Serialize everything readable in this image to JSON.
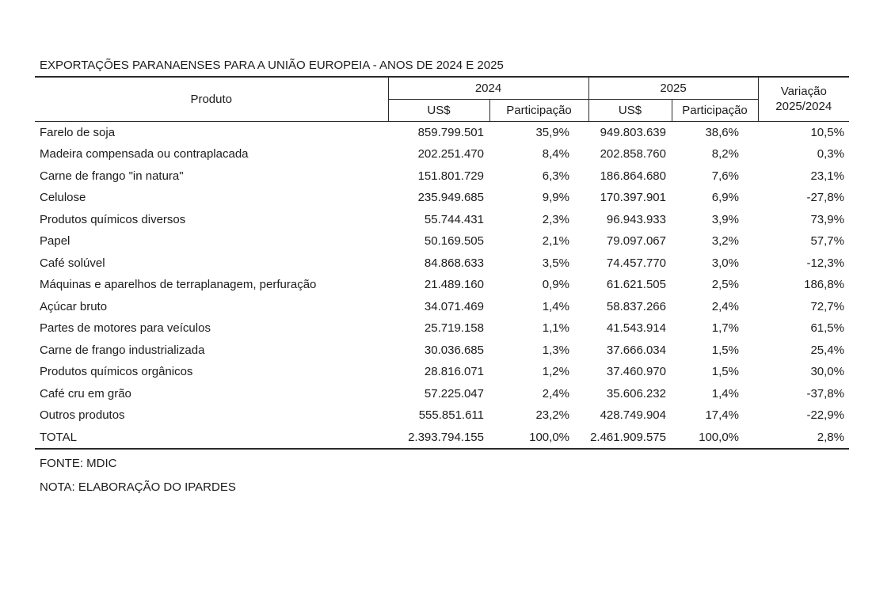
{
  "title": "EXPORTAÇÕES PARANAENSES PARA A UNIÃO EUROPEIA - ANOS DE 2024 E 2025",
  "chart_data": {
    "type": "table",
    "title": "EXPORTAÇÕES PARANAENSES PARA A UNIÃO EUROPEIA - ANOS DE 2024 E 2025",
    "header": {
      "produto": "Produto",
      "y2024": "2024",
      "y2025": "2025",
      "usd": "US$",
      "participacao": "Participação",
      "variacao_line1": "Variação",
      "variacao_line2": "2025/2024"
    },
    "columns": [
      "Produto",
      "2024 US$",
      "2024 Participação",
      "2025 US$",
      "2025 Participação",
      "Variação 2025/2024"
    ],
    "rows": [
      {
        "product": "Farelo de soja",
        "usd_2024": "859.799.501",
        "share_2024": "35,9%",
        "usd_2025": "949.803.639",
        "share_2025": "38,6%",
        "variation": "10,5%"
      },
      {
        "product": "Madeira compensada ou contraplacada",
        "usd_2024": "202.251.470",
        "share_2024": "8,4%",
        "usd_2025": "202.858.760",
        "share_2025": "8,2%",
        "variation": "0,3%"
      },
      {
        "product": "Carne de frango \"in natura\"",
        "usd_2024": "151.801.729",
        "share_2024": "6,3%",
        "usd_2025": "186.864.680",
        "share_2025": "7,6%",
        "variation": "23,1%"
      },
      {
        "product": "Celulose",
        "usd_2024": "235.949.685",
        "share_2024": "9,9%",
        "usd_2025": "170.397.901",
        "share_2025": "6,9%",
        "variation": "-27,8%"
      },
      {
        "product": "Produtos químicos diversos",
        "usd_2024": "55.744.431",
        "share_2024": "2,3%",
        "usd_2025": "96.943.933",
        "share_2025": "3,9%",
        "variation": "73,9%"
      },
      {
        "product": "Papel",
        "usd_2024": "50.169.505",
        "share_2024": "2,1%",
        "usd_2025": "79.097.067",
        "share_2025": "3,2%",
        "variation": "57,7%"
      },
      {
        "product": "Café solúvel",
        "usd_2024": "84.868.633",
        "share_2024": "3,5%",
        "usd_2025": "74.457.770",
        "share_2025": "3,0%",
        "variation": "-12,3%"
      },
      {
        "product": "Máquinas e aparelhos de terraplanagem, perfuração",
        "usd_2024": "21.489.160",
        "share_2024": "0,9%",
        "usd_2025": "61.621.505",
        "share_2025": "2,5%",
        "variation": "186,8%"
      },
      {
        "product": "Açúcar bruto",
        "usd_2024": "34.071.469",
        "share_2024": "1,4%",
        "usd_2025": "58.837.266",
        "share_2025": "2,4%",
        "variation": "72,7%"
      },
      {
        "product": "Partes de motores para veículos",
        "usd_2024": "25.719.158",
        "share_2024": "1,1%",
        "usd_2025": "41.543.914",
        "share_2025": "1,7%",
        "variation": "61,5%"
      },
      {
        "product": "Carne de frango industrializada",
        "usd_2024": "30.036.685",
        "share_2024": "1,3%",
        "usd_2025": "37.666.034",
        "share_2025": "1,5%",
        "variation": "25,4%"
      },
      {
        "product": "Produtos químicos orgânicos",
        "usd_2024": "28.816.071",
        "share_2024": "1,2%",
        "usd_2025": "37.460.970",
        "share_2025": "1,5%",
        "variation": "30,0%"
      },
      {
        "product": "Café cru em grão",
        "usd_2024": "57.225.047",
        "share_2024": "2,4%",
        "usd_2025": "35.606.232",
        "share_2025": "1,4%",
        "variation": "-37,8%"
      },
      {
        "product": "Outros produtos",
        "usd_2024": "555.851.611",
        "share_2024": "23,2%",
        "usd_2025": "428.749.904",
        "share_2025": "17,4%",
        "variation": "-22,9%"
      }
    ],
    "total": {
      "product": "TOTAL",
      "usd_2024": "2.393.794.155",
      "share_2024": "100,0%",
      "usd_2025": "2.461.909.575",
      "share_2025": "100,0%",
      "variation": "2,8%"
    }
  },
  "footer": {
    "fonte": "FONTE: MDIC",
    "nota": "NOTA: ELABORAÇÃO DO IPARDES"
  }
}
